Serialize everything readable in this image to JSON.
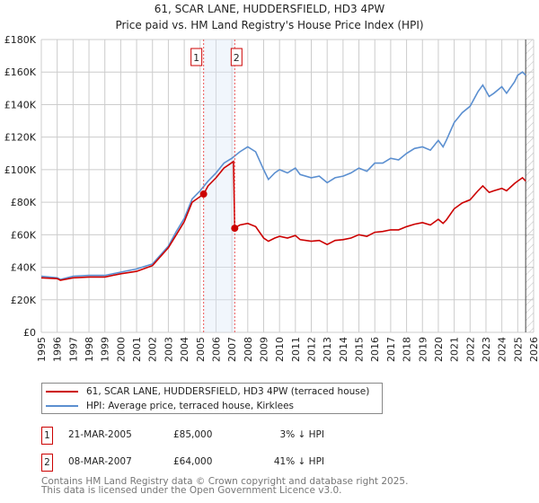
{
  "title": "61, SCAR LANE, HUDDERSFIELD, HD3 4PW",
  "subtitle": "Price paid vs. HM Land Registry's House Price Index (HPI)",
  "chart_data": {
    "type": "line",
    "xlim": [
      1995,
      2026
    ],
    "ylim": [
      0,
      180000
    ],
    "yticks": [
      0,
      20000,
      40000,
      60000,
      80000,
      100000,
      120000,
      140000,
      160000,
      180000
    ],
    "ytick_labels": [
      "£0",
      "£20K",
      "£40K",
      "£60K",
      "£80K",
      "£100K",
      "£120K",
      "£140K",
      "£160K",
      "£180K"
    ],
    "xticks": [
      1995,
      1996,
      1997,
      1998,
      1999,
      2000,
      2001,
      2002,
      2003,
      2004,
      2005,
      2006,
      2007,
      2008,
      2009,
      2010,
      2011,
      2012,
      2013,
      2014,
      2015,
      2016,
      2017,
      2018,
      2019,
      2020,
      2021,
      2022,
      2023,
      2024,
      2025,
      2026
    ],
    "grid": true,
    "shaded_range": [
      2005.22,
      2007.18
    ],
    "hatched_from": 2025.5,
    "series": [
      {
        "name": "61, SCAR LANE, HUDDERSFIELD, HD3 4PW (terraced house)",
        "color": "#cc0000",
        "x": [
          1995,
          1996,
          1996.2,
          1997,
          1998,
          1999,
          2000,
          2001,
          2002,
          2003,
          2003.5,
          2004,
          2004.5,
          2005.22,
          2005.5,
          2006,
          2006.5,
          2007.1,
          2007.18,
          2007.5,
          2008,
          2008.5,
          2009,
          2009.3,
          2009.7,
          2010,
          2010.5,
          2011,
          2011.3,
          2012,
          2012.5,
          2013,
          2013.5,
          2014,
          2014.5,
          2015,
          2015.5,
          2016,
          2016.5,
          2017,
          2017.5,
          2018,
          2018.5,
          2019,
          2019.5,
          2020,
          2020.3,
          2020.5,
          2021,
          2021.5,
          2022,
          2022.5,
          2022.8,
          2023.2,
          2023.5,
          2024,
          2024.3,
          2024.8,
          2025,
          2025.3,
          2025.5
        ],
        "y": [
          33500,
          33000,
          32000,
          33500,
          34000,
          34000,
          36000,
          37500,
          41000,
          52000,
          60000,
          68000,
          80000,
          85000,
          90000,
          95000,
          101000,
          105000,
          64000,
          66000,
          67000,
          65000,
          58000,
          56000,
          58000,
          59000,
          58000,
          59500,
          57000,
          56000,
          56500,
          54000,
          56500,
          57000,
          58000,
          60000,
          59000,
          61500,
          62000,
          63000,
          63000,
          65000,
          66500,
          67500,
          66000,
          69500,
          67000,
          69000,
          76000,
          79500,
          81500,
          87000,
          90000,
          86000,
          87000,
          88500,
          87000,
          91500,
          93000,
          95000,
          93000
        ]
      },
      {
        "name": "HPI: Average price, terraced house, Kirklees",
        "color": "#5b8fd0",
        "x": [
          1995,
          1996,
          1996.2,
          1997,
          1998,
          1999,
          2000,
          2001,
          2002,
          2003,
          2003.5,
          2004,
          2004.5,
          2005,
          2005.5,
          2006,
          2006.5,
          2007,
          2007.5,
          2008,
          2008.5,
          2009,
          2009.3,
          2009.7,
          2010,
          2010.5,
          2011,
          2011.3,
          2012,
          2012.5,
          2013,
          2013.5,
          2014,
          2014.5,
          2015,
          2015.5,
          2016,
          2016.5,
          2017,
          2017.5,
          2018,
          2018.5,
          2019,
          2019.5,
          2020,
          2020.3,
          2020.5,
          2021,
          2021.5,
          2022,
          2022.5,
          2022.8,
          2023.2,
          2023.5,
          2024,
          2024.3,
          2024.8,
          2025,
          2025.3,
          2025.5
        ],
        "y": [
          34500,
          33500,
          32500,
          34500,
          35000,
          35000,
          37000,
          39000,
          42000,
          53000,
          62000,
          70000,
          82000,
          87000,
          93000,
          98000,
          104000,
          107000,
          111000,
          114000,
          111000,
          100000,
          94000,
          98000,
          100000,
          98000,
          101000,
          97000,
          95000,
          96000,
          92000,
          95000,
          96000,
          98000,
          101000,
          99000,
          104000,
          104000,
          107000,
          106000,
          110000,
          113000,
          114000,
          112000,
          118000,
          114000,
          118000,
          129000,
          135000,
          139000,
          148000,
          152000,
          145000,
          147000,
          151000,
          147000,
          154000,
          158000,
          160000,
          158000
        ]
      }
    ],
    "markers": [
      {
        "label": "1",
        "x": 2005.22,
        "y": 85000
      },
      {
        "label": "2",
        "x": 2007.18,
        "y": 64000
      }
    ]
  },
  "legend": {
    "items": [
      {
        "label": "61, SCAR LANE, HUDDERSFIELD, HD3 4PW (terraced house)",
        "color": "#cc0000"
      },
      {
        "label": "HPI: Average price, terraced house, Kirklees",
        "color": "#5b8fd0"
      }
    ]
  },
  "transactions": [
    {
      "num": "1",
      "date": "21-MAR-2005",
      "price": "£85,000",
      "hpi": "3% ↓ HPI"
    },
    {
      "num": "2",
      "date": "08-MAR-2007",
      "price": "£64,000",
      "hpi": "41% ↓ HPI"
    }
  ],
  "footer": {
    "line1": "Contains HM Land Registry data © Crown copyright and database right 2025.",
    "line2": "This data is licensed under the Open Government Licence v3.0."
  }
}
